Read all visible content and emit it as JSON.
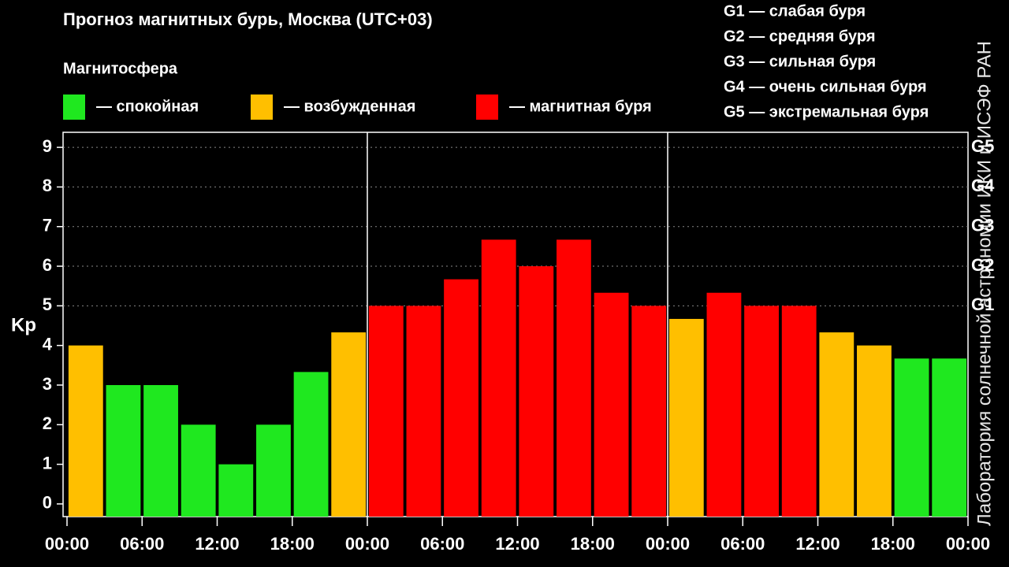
{
  "chart_data": {
    "type": "bar",
    "title": "Прогноз магнитных бурь, Москва (UTC+03)",
    "subtitle": "Магнитосфера",
    "legend": [
      {
        "label": "— спокойная",
        "color": "#1fe81f"
      },
      {
        "label": "— возбужденная",
        "color": "#ffbf00"
      },
      {
        "label": "— магнитная буря",
        "color": "#ff0000"
      }
    ],
    "storm_scale": [
      "G1 — слабая буря",
      "G2 — средняя буря",
      "G3 — сильная буря",
      "G4 — очень сильная буря",
      "G5 — экстремальная буря"
    ],
    "y_label": "Kp",
    "watermark": "Лаборатория солнечной астрономии ИКИ и ИСЭФ РАН",
    "x": [
      1.5,
      4.5,
      7.5,
      10.5,
      13.5,
      16.5,
      19.5,
      22.5,
      25.5,
      28.5,
      31.5,
      34.5,
      37.5,
      40.5,
      43.5,
      46.5,
      49.5,
      52.5,
      55.5,
      58.5,
      61.5,
      64.5,
      67.5,
      70.5
    ],
    "values": [
      4,
      3,
      3,
      2,
      1,
      2,
      3.33,
      4.33,
      5,
      5,
      5.67,
      6.67,
      6,
      6.67,
      5.33,
      5,
      4.67,
      5.33,
      5,
      5,
      4.33,
      4,
      3.67,
      3.67
    ],
    "colors": [
      "#ffbf00",
      "#1fe81f",
      "#1fe81f",
      "#1fe81f",
      "#1fe81f",
      "#1fe81f",
      "#1fe81f",
      "#ffbf00",
      "#ff0000",
      "#ff0000",
      "#ff0000",
      "#ff0000",
      "#ff0000",
      "#ff0000",
      "#ff0000",
      "#ff0000",
      "#ffbf00",
      "#ff0000",
      "#ff0000",
      "#ff0000",
      "#ffbf00",
      "#ffbf00",
      "#1fe81f",
      "#1fe81f"
    ],
    "xlim": [
      0,
      72
    ],
    "xticks": [
      {
        "value": 0,
        "label": "00:00"
      },
      {
        "value": 6,
        "label": "06:00"
      },
      {
        "value": 12,
        "label": "12:00"
      },
      {
        "value": 18,
        "label": "18:00"
      },
      {
        "value": 24,
        "label": "00:00"
      },
      {
        "value": 30,
        "label": "06:00"
      },
      {
        "value": 36,
        "label": "12:00"
      },
      {
        "value": 42,
        "label": "18:00"
      },
      {
        "value": 48,
        "label": "00:00"
      },
      {
        "value": 54,
        "label": "06:00"
      },
      {
        "value": 60,
        "label": "12:00"
      },
      {
        "value": 66,
        "label": "18:00"
      },
      {
        "value": 72,
        "label": "00:00"
      }
    ],
    "ylim": [
      -0.32,
      9.38
    ],
    "yticks": [
      0,
      1,
      2,
      3,
      4,
      5,
      6,
      7,
      8,
      9
    ],
    "y2lim": [
      -0.32,
      9.38
    ],
    "y2ticks": [
      {
        "value": 5,
        "label": "G1"
      },
      {
        "value": 6,
        "label": "G2"
      },
      {
        "value": 7,
        "label": "G3"
      },
      {
        "value": 8,
        "label": "G4"
      },
      {
        "value": 9,
        "label": "G5"
      }
    ],
    "day_separators": [
      24,
      48
    ]
  }
}
